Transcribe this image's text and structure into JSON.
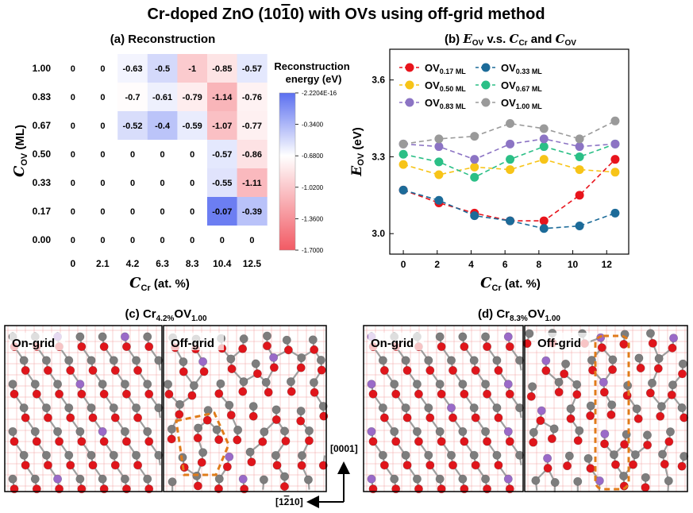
{
  "title": "Cr-doped ZnO (10̅1̅0) with OVs using off-grid method",
  "title_parts": {
    "pre": "Cr-doped ZnO (10",
    "bar": "1",
    "post": "0) with OVs using off-grid method"
  },
  "chart_data": [
    {
      "id": "a",
      "type": "heatmap",
      "title": "(a) Reconstruction",
      "xlabel": "C_Cr (at. %)",
      "ylabel": "C_OV (ML)",
      "x_categories": [
        "0",
        "2.1",
        "4.2",
        "6.3",
        "8.3",
        "10.4",
        "12.5"
      ],
      "y_categories": [
        "1.00",
        "0.83",
        "0.67",
        "0.50",
        "0.33",
        "0.17",
        "0.00"
      ],
      "values": [
        [
          0,
          0,
          -0.63,
          -0.5,
          -1,
          -0.85,
          -0.57
        ],
        [
          0,
          0,
          -0.7,
          -0.61,
          -0.79,
          -1.14,
          -0.76
        ],
        [
          0,
          0,
          -0.52,
          -0.4,
          -0.59,
          -1.07,
          -0.77
        ],
        [
          0,
          0,
          0,
          0,
          0,
          -0.57,
          -0.86
        ],
        [
          0,
          0,
          0,
          0,
          0,
          -0.55,
          -1.11
        ],
        [
          0,
          0,
          0,
          0,
          0,
          -0.07,
          -0.39
        ],
        [
          0,
          0,
          0,
          0,
          0,
          0,
          0
        ]
      ],
      "cell_labels": [
        [
          "0",
          "0",
          "-0.63",
          "-0.5",
          "-1",
          "-0.85",
          "-0.57"
        ],
        [
          "0",
          "0",
          "-0.7",
          "-0.61",
          "-0.79",
          "-1.14",
          "-0.76"
        ],
        [
          "0",
          "0",
          "-0.52",
          "-0.4",
          "-0.59",
          "-1.07",
          "-0.77"
        ],
        [
          "0",
          "0",
          "0",
          "0",
          "0",
          "-0.57",
          "-0.86"
        ],
        [
          "0",
          "0",
          "0",
          "0",
          "0",
          "-0.55",
          "-1.11"
        ],
        [
          "0",
          "0",
          "0",
          "0",
          "0",
          "-0.07",
          "-0.39"
        ],
        [
          "0",
          "0",
          "0",
          "0",
          "0",
          "0",
          "0"
        ]
      ],
      "colorbar": {
        "title_line1": "Reconstruction",
        "title_line2": "energy (eV)",
        "min": -1.7,
        "max": -2.2204e-16,
        "ticks": [
          "-2.2204E-16",
          "-0.3400",
          "-0.6800",
          "-1.0200",
          "-1.3600",
          "-1.7000"
        ],
        "colors": [
          "#5b6ff0",
          "#ffffff",
          "#f25a64"
        ]
      }
    },
    {
      "id": "b",
      "type": "line",
      "title": "(b) E_OV v.s. C_Cr and C_OV",
      "xlabel": "C_Cr (at. %)",
      "ylabel": "E_OV (eV)",
      "xlim": [
        -0.8,
        13.3
      ],
      "ylim": [
        2.92,
        3.72
      ],
      "xticks": [
        0,
        2,
        4,
        6,
        8,
        10,
        12
      ],
      "yticks": [
        3.0,
        3.3,
        3.6
      ],
      "ytick_labels": [
        "3.0",
        "3.3",
        "3.6"
      ],
      "x": [
        0,
        2.1,
        4.2,
        6.3,
        8.3,
        10.4,
        12.5
      ],
      "series": [
        {
          "name": "OV",
          "sub": "0.17 ML",
          "color": "#e8141c",
          "values": [
            3.17,
            3.12,
            3.08,
            3.05,
            3.05,
            3.15,
            3.29
          ]
        },
        {
          "name": "OV",
          "sub": "0.33 ML",
          "color": "#1c6b99",
          "values": [
            3.17,
            3.13,
            3.07,
            3.05,
            3.02,
            3.03,
            3.08
          ]
        },
        {
          "name": "OV",
          "sub": "0.50 ML",
          "color": "#f7c418",
          "values": [
            3.27,
            3.23,
            3.26,
            3.25,
            3.29,
            3.25,
            3.24
          ]
        },
        {
          "name": "OV",
          "sub": "0.67 ML",
          "color": "#2bbf86",
          "values": [
            3.31,
            3.28,
            3.22,
            3.29,
            3.34,
            3.3,
            3.35
          ]
        },
        {
          "name": "OV",
          "sub": "0.83 ML",
          "color": "#8c74c4",
          "values": [
            3.35,
            3.34,
            3.29,
            3.35,
            3.37,
            3.34,
            3.35
          ]
        },
        {
          "name": "OV",
          "sub": "1.00 ML",
          "color": "#9a9a9a",
          "values": [
            3.35,
            3.37,
            3.38,
            3.43,
            3.41,
            3.37,
            3.44
          ]
        }
      ]
    }
  ],
  "structures": {
    "c": {
      "title_pre": "(c) Cr",
      "title_sub1": "4.2%",
      "title_mid": "OV",
      "title_sub2": "1.00",
      "left_label": "On-grid",
      "right_label": "Off-grid"
    },
    "d": {
      "title_pre": "(d) Cr",
      "title_sub1": "8.3%",
      "title_mid": "OV",
      "title_sub2": "1.00",
      "left_label": "On-grid",
      "right_label": "Off-grid"
    }
  },
  "axes_indicator": {
    "vertical": "[0001]",
    "horizontal_pre": "[1",
    "horizontal_bar": "2",
    "horizontal_post": "10]"
  },
  "atom_colors": {
    "zn": "#7d7d7d",
    "o": "#e0151b",
    "cr": "#9a6ac8",
    "bond": "#9e9e9e",
    "grid": "#f2a2a2"
  }
}
